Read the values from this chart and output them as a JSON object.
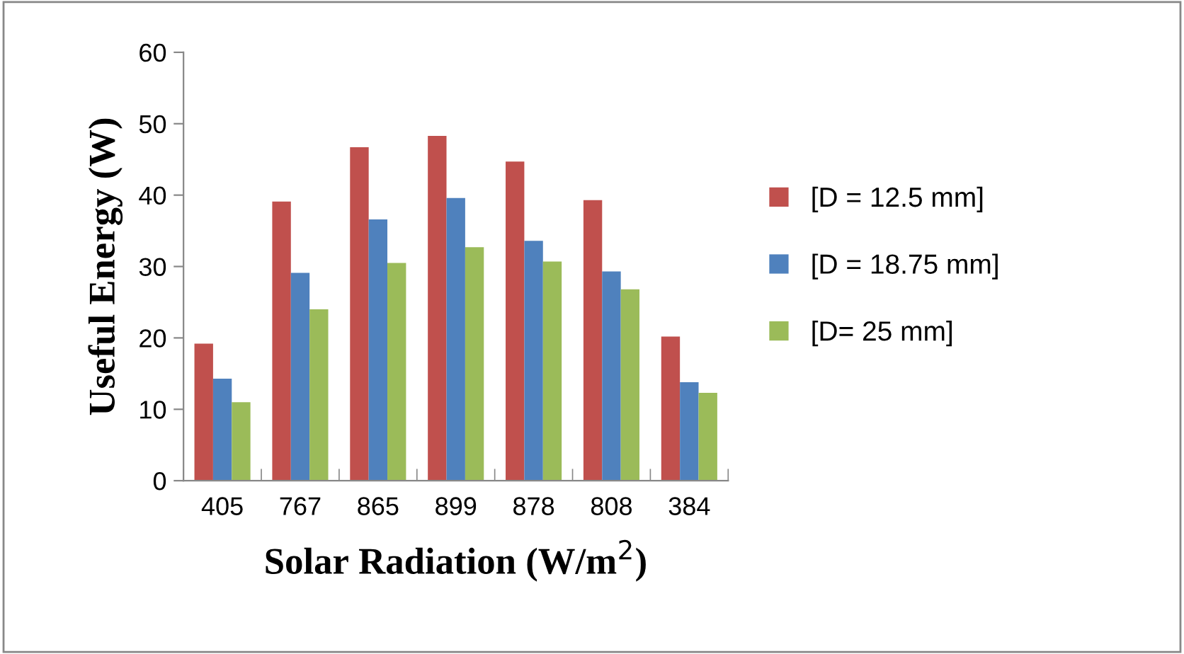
{
  "chart_data": {
    "type": "bar",
    "xlabel": "Solar Radiation (W/m$^{2}$)",
    "ylabel": "Useful Energy (W)",
    "categories": [
      "405",
      "767",
      "865",
      "899",
      "878",
      "808",
      "384"
    ],
    "series": [
      {
        "name": "[D = 12.5 mm]",
        "color": "#c0504d",
        "values": [
          19.2,
          39.1,
          46.7,
          48.3,
          44.7,
          39.3,
          20.2
        ]
      },
      {
        "name": "[D = 18.75 mm]",
        "color": "#4f81bd",
        "values": [
          14.3,
          29.1,
          36.6,
          39.6,
          33.6,
          29.3,
          13.8
        ]
      },
      {
        "name": "[D= 25 mm]",
        "color": "#9bbb59",
        "values": [
          11.0,
          24.0,
          30.5,
          32.7,
          30.7,
          26.8,
          12.3
        ]
      }
    ],
    "ylim": [
      0,
      60
    ],
    "yticks": [
      0,
      10,
      20,
      30,
      40,
      50,
      60
    ],
    "grid": false,
    "legend": "right"
  }
}
